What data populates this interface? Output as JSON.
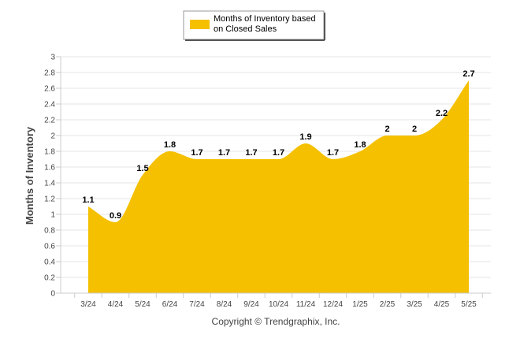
{
  "legend": {
    "line1": "Months of Inventory based",
    "line2": "on Closed Sales"
  },
  "credit": "Copyright © Trendgraphix, Inc.",
  "colors": {
    "series": "#F5C000",
    "grid": "#e6e6e6",
    "axis": "#cccccc"
  },
  "chart_data": {
    "type": "area",
    "ylabel": "Months of Inventory",
    "xlabel": "",
    "ylim": [
      0,
      3
    ],
    "yticks": [
      "0",
      "0.2",
      "0.4",
      "0.6",
      "0.8",
      "1",
      "1.2",
      "1.4",
      "1.6",
      "1.8",
      "2",
      "2.2",
      "2.4",
      "2.6",
      "2.8",
      "3"
    ],
    "grid": "horizontal",
    "legend_position": "top-center",
    "categories": [
      "3/24",
      "4/24",
      "5/24",
      "6/24",
      "7/24",
      "8/24",
      "9/24",
      "10/24",
      "11/24",
      "12/24",
      "1/25",
      "2/25",
      "3/25",
      "4/25",
      "5/25"
    ],
    "series": [
      {
        "name": "Months of Inventory based on Closed Sales",
        "values": [
          1.1,
          0.9,
          1.5,
          1.8,
          1.7,
          1.7,
          1.7,
          1.7,
          1.9,
          1.7,
          1.8,
          2,
          2,
          2.2,
          2.7
        ],
        "labels": [
          "1.1",
          "0.9",
          "1.5",
          "1.8",
          "1.7",
          "1.7",
          "1.7",
          "1.7",
          "1.9",
          "1.7",
          "1.8",
          "2",
          "2",
          "2.2",
          "2.7"
        ]
      }
    ]
  }
}
